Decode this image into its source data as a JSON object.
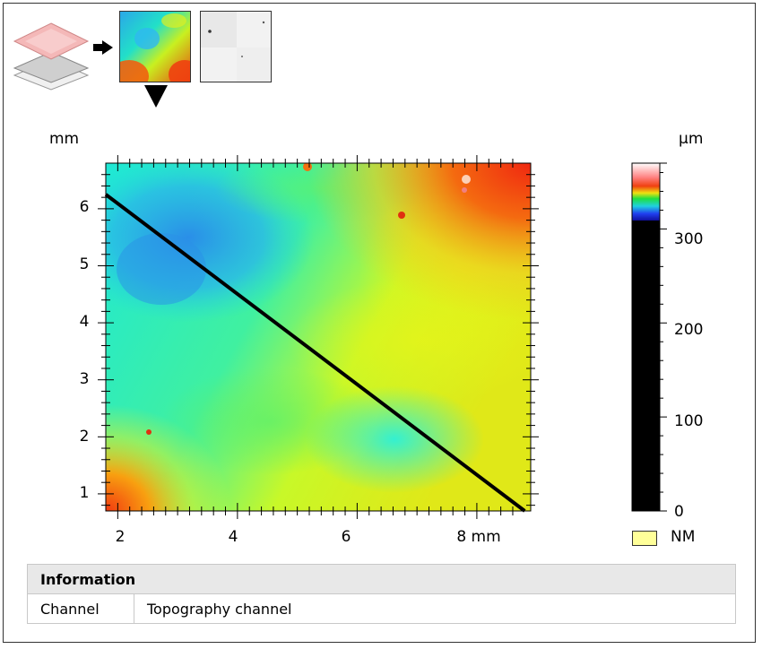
{
  "plot": {
    "x_unit": "mm",
    "y_unit": "mm",
    "colorbar_unit": "µm",
    "x_ticks": [
      "2",
      "4",
      "6",
      "8 mm"
    ],
    "y_ticks": [
      "1",
      "2",
      "3",
      "4",
      "5",
      "6"
    ],
    "colorbar_ticks": [
      "0",
      "100",
      "200",
      "300"
    ],
    "x_range_mm": [
      1.8,
      8.9
    ],
    "y_range_mm": [
      0.7,
      6.8
    ],
    "colorbar_range_um": [
      0,
      370
    ],
    "profile_line": {
      "from_mm": [
        1.8,
        6.25
      ],
      "to_mm": [
        8.8,
        0.7
      ]
    }
  },
  "legend": {
    "nm_label": "NM",
    "nm_color": "#ffff99"
  },
  "info": {
    "header": "Information",
    "rows": [
      {
        "key": "Channel",
        "value": "Topography channel"
      }
    ]
  },
  "icons": {
    "layers": "layer-stack-icon",
    "arrow": "arrow-right-icon",
    "selected_marker": "triangle-down-icon"
  }
}
